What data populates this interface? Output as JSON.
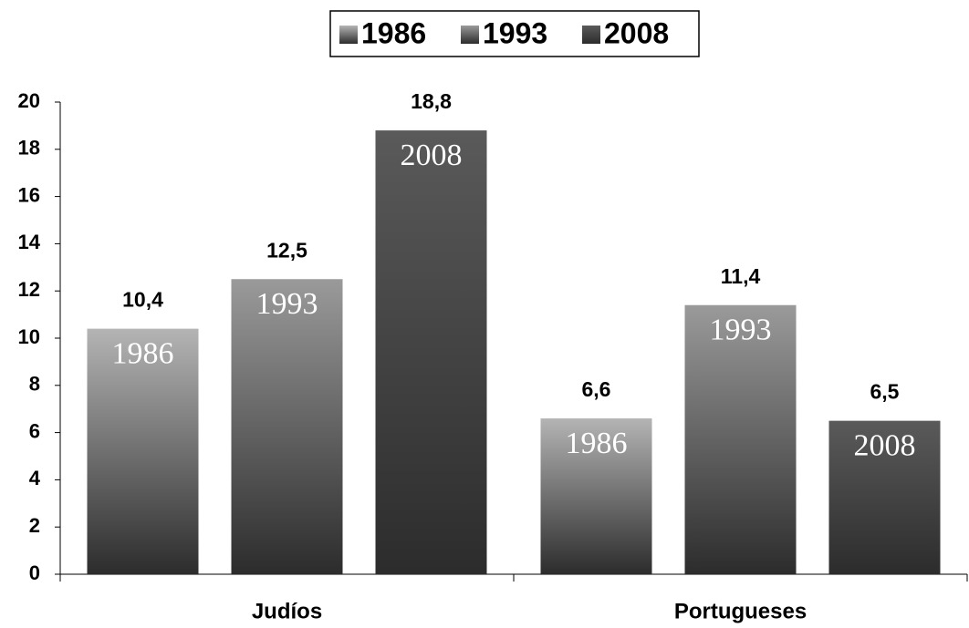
{
  "chart_data": {
    "type": "bar",
    "categories": [
      "Judíos",
      "Portugueses"
    ],
    "series": [
      {
        "name": "1986",
        "color": "#b4b4b4",
        "values": [
          10.4,
          6.6
        ],
        "value_labels": [
          "10,4",
          "6,6"
        ]
      },
      {
        "name": "1993",
        "color": "#9a9a9a",
        "values": [
          12.5,
          11.4
        ],
        "value_labels": [
          "12,5",
          "11,4"
        ]
      },
      {
        "name": "2008",
        "color": "#5a5a5a",
        "values": [
          18.8,
          6.5
        ],
        "value_labels": [
          "18,8",
          "6,5"
        ]
      }
    ],
    "ylim": [
      0,
      20
    ],
    "yticks": [
      0,
      2,
      4,
      6,
      8,
      10,
      12,
      14,
      16,
      18,
      20
    ],
    "grid": false,
    "legend": "top"
  }
}
